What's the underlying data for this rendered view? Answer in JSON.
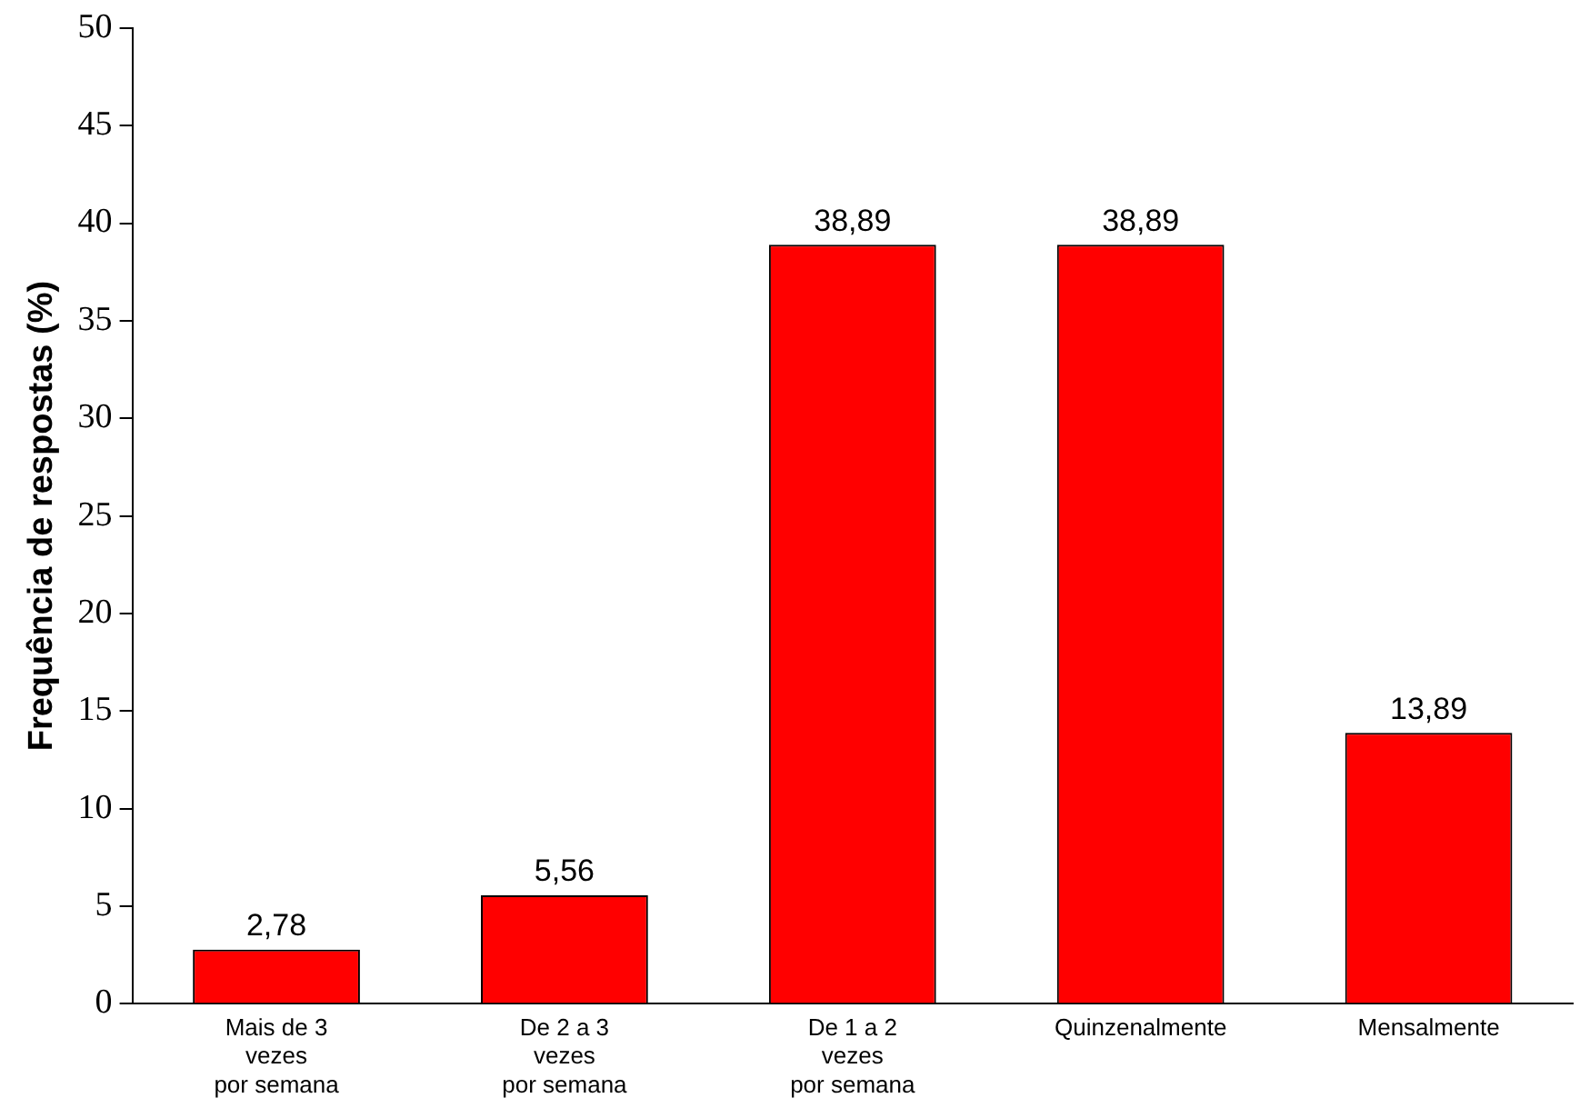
{
  "chart_data": {
    "type": "bar",
    "ylabel": "Frequência de respostas (%)",
    "categories": [
      "Mais de 3 vezes por semana",
      "De 2 a 3 vezes por semana",
      "De 1 a 2 vezes por semana",
      "Quinzenalmente",
      "Mensalmente"
    ],
    "values": [
      2.78,
      5.56,
      38.89,
      38.89,
      13.89
    ],
    "value_labels": [
      "2,78",
      "5,56",
      "38,89",
      "38,89",
      "13,89"
    ],
    "color": "#ff0000",
    "ylim": [
      0,
      50
    ],
    "yticks": [
      0,
      5,
      10,
      15,
      20,
      25,
      30,
      35,
      40,
      45,
      50
    ],
    "grid": false,
    "legend": false
  }
}
